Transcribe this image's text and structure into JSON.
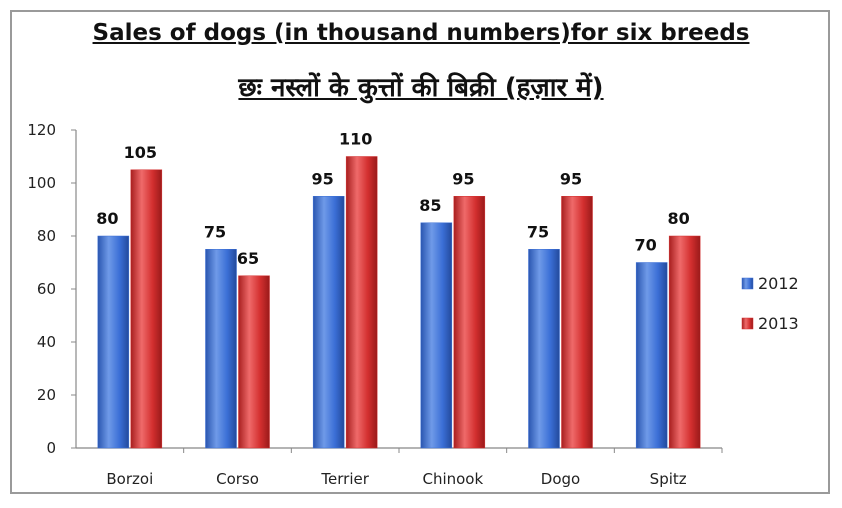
{
  "chart_data": {
    "type": "bar",
    "title": "Sales of dogs (in thousand numbers)for six breeds",
    "subtitle": "छः नस्लों के कुत्तों की बिक्री (हज़ार में)",
    "xlabel": "",
    "ylabel": "",
    "categories": [
      "Borzoi",
      "Corso",
      "Terrier",
      "Chinook",
      "Dogo",
      "Spitz"
    ],
    "series": [
      {
        "name": "2012",
        "values": [
          80,
          75,
          95,
          85,
          75,
          70
        ],
        "color": "#3b6fd6"
      },
      {
        "name": "2013",
        "values": [
          105,
          65,
          110,
          95,
          95,
          80
        ],
        "color": "#d32f2f"
      }
    ],
    "ylim": [
      0,
      120
    ],
    "yticks": [
      0,
      20,
      40,
      60,
      80,
      100,
      120
    ],
    "grid": false,
    "legend": "right",
    "data_labels": true
  }
}
